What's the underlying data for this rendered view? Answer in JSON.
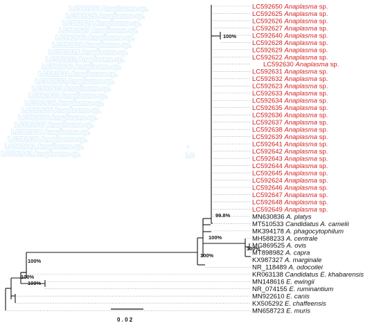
{
  "colors": {
    "highlight": "#d42020",
    "normal": "#111111",
    "branch": "#111111",
    "dotted": "#8a8a8a",
    "ghost_outline": "#dff1fb"
  },
  "taxa": [
    {
      "acc": "LC592650",
      "genus": "Anaplasma",
      "sp": "sp.",
      "red": true
    },
    {
      "acc": "LC592625",
      "genus": "Anaplasma",
      "sp": "sp.",
      "red": true
    },
    {
      "acc": "LC592626",
      "genus": "Anaplasma",
      "sp": "sp.",
      "red": true
    },
    {
      "acc": "LC592627",
      "genus": "Anaplasma",
      "sp": "sp.",
      "red": true
    },
    {
      "acc": "LC592640",
      "genus": "Anaplasma",
      "sp": "sp.",
      "red": true
    },
    {
      "acc": "LC592628",
      "genus": "Anaplasma",
      "sp": "sp.",
      "red": true
    },
    {
      "acc": "LC592629",
      "genus": "Anaplasma",
      "sp": "sp.",
      "red": true
    },
    {
      "acc": "LC592622",
      "genus": "Anaplasma",
      "sp": "sp.",
      "red": true
    },
    {
      "acc": "LC592630",
      "genus": "Anaplasma",
      "sp": "sp.",
      "red": true
    },
    {
      "acc": "LC592631",
      "genus": "Anaplasma",
      "sp": "sp.",
      "red": true
    },
    {
      "acc": "LC592632",
      "genus": "Anaplasma",
      "sp": "sp.",
      "red": true
    },
    {
      "acc": "LC592623",
      "genus": "Anaplasma",
      "sp": "sp.",
      "red": true
    },
    {
      "acc": "LC592633",
      "genus": "Anaplasma",
      "sp": "sp.",
      "red": true
    },
    {
      "acc": "LC592634",
      "genus": "Anaplasma",
      "sp": "sp.",
      "red": true
    },
    {
      "acc": "LC592635",
      "genus": "Anaplasma",
      "sp": "sp.",
      "red": true
    },
    {
      "acc": "LC592636",
      "genus": "Anaplasma",
      "sp": "sp.",
      "red": true
    },
    {
      "acc": "LC592637",
      "genus": "Anaplasma",
      "sp": "sp.",
      "red": true
    },
    {
      "acc": "LC592638",
      "genus": "Anaplasma",
      "sp": "sp.",
      "red": true
    },
    {
      "acc": "LC592639",
      "genus": "Anaplasma",
      "sp": "sp.",
      "red": true
    },
    {
      "acc": "LC592641",
      "genus": "Anaplasma",
      "sp": "sp.",
      "red": true
    },
    {
      "acc": "LC592642",
      "genus": "Anaplasma",
      "sp": "sp.",
      "red": true
    },
    {
      "acc": "LC592643",
      "genus": "Anaplasma",
      "sp": "sp.",
      "red": true
    },
    {
      "acc": "LC592644",
      "genus": "Anaplasma",
      "sp": "sp.",
      "red": true
    },
    {
      "acc": "LC592645",
      "genus": "Anaplasma",
      "sp": "sp.",
      "red": true
    },
    {
      "acc": "LC592624",
      "genus": "Anaplasma",
      "sp": "sp.",
      "red": true
    },
    {
      "acc": "LC592646",
      "genus": "Anaplasma",
      "sp": "sp.",
      "red": true
    },
    {
      "acc": "LC592647",
      "genus": "Anaplasma",
      "sp": "sp.",
      "red": true
    },
    {
      "acc": "LC592648",
      "genus": "Anaplasma",
      "sp": "sp.",
      "red": true
    },
    {
      "acc": "LC592649",
      "genus": "Anaplasma",
      "sp": "sp.",
      "red": true
    },
    {
      "acc": "MN630836",
      "genus": "A.",
      "sp": "platys",
      "red": false
    },
    {
      "acc": "MT510533",
      "genus": "Candidatus",
      "sp": "A. camelii",
      "red": false
    },
    {
      "acc": "MK394178",
      "genus": "A.",
      "sp": "phagocytophilum",
      "red": false
    },
    {
      "acc": "MH588233",
      "genus": "A.",
      "sp": "centrale",
      "red": false
    },
    {
      "acc": "MG869525",
      "genus": "A.",
      "sp": "ovis",
      "red": false
    },
    {
      "acc": "MT898982",
      "genus": "A.",
      "sp": "capra",
      "red": false
    },
    {
      "acc": "KX987327",
      "genus": "A.",
      "sp": "marginale",
      "red": false
    },
    {
      "acc": "NR_118489",
      "genus": "A.",
      "sp": "odocoilei",
      "red": false
    },
    {
      "acc": "KR063138",
      "genus": "Candidatus",
      "sp": "E. khabarensis",
      "red": false
    },
    {
      "acc": "MN148616",
      "genus": "E.",
      "sp": "ewingii",
      "red": false
    },
    {
      "acc": "NR_074155",
      "genus": "E.",
      "sp": "ruminantium",
      "red": false
    },
    {
      "acc": "MN922610",
      "genus": "E.",
      "sp": "canis",
      "red": false
    },
    {
      "acc": "KX505292",
      "genus": "E.",
      "sp": "chaffeensis",
      "red": false
    },
    {
      "acc": "MN658723",
      "genus": "E.",
      "sp": "muris",
      "red": false
    }
  ],
  "supports": [
    "100%",
    "99.8%",
    "100%",
    "100%",
    "100%",
    "100%",
    "100%",
    "100%"
  ],
  "scale_label": "0 . 0 2",
  "ghost_labels": [
    "LC592650 Anaplasma sp.",
    "LC592625 Anaplasma sp.",
    "LC592626 Anaplasma sp.",
    "LC592627 Anaplasma sp.",
    "LC592640 Anaplasma sp.",
    "LC592628 Anaplasma sp.",
    "LC592629 Anaplasma sp.",
    "LC592622 Anaplasma sp.",
    "LC592630 Anaplasma sp.",
    "LC592631 Anaplasma sp.",
    "LC592632 Anaplasma sp.",
    "LC592623 Anaplasma sp.",
    "LC592633 Anaplasma sp.",
    "LC592634 Anaplasma sp.",
    "LC592635 Anaplasma sp.",
    "LC592636 Anaplasma sp.",
    "LC592637 Anaplasma sp.",
    "LC592638 Anaplasma sp.",
    "LC592639 Anaplasma sp.",
    "LC592641 Anaplasma sp.",
    "LC592642 Anaplasma sp."
  ]
}
